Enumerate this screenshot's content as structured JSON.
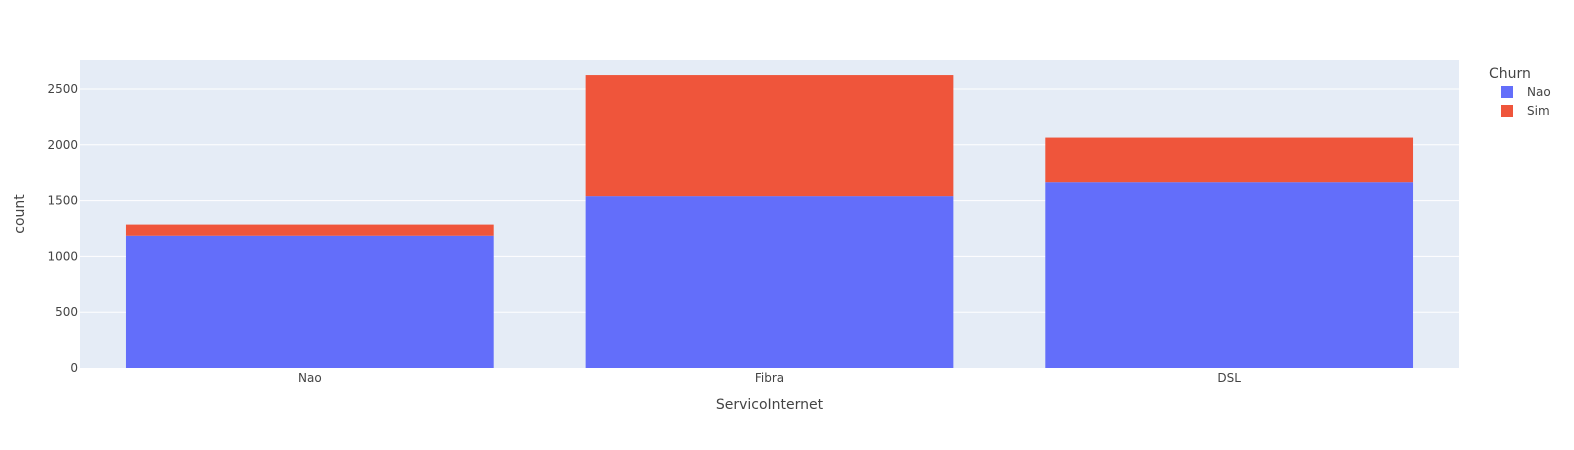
{
  "chart_data": {
    "type": "bar",
    "barmode": "stack",
    "categories": [
      "Nao",
      "Fibra",
      "DSL"
    ],
    "series": [
      {
        "name": "Nao",
        "values": [
          1185,
          1540,
          1665
        ],
        "color": "#636efa"
      },
      {
        "name": "Sim",
        "values": [
          100,
          1085,
          400
        ],
        "color": "#ef553b"
      }
    ],
    "xlabel": "ServicoInternet",
    "ylabel": "count",
    "ylim": [
      0,
      2760
    ],
    "yticks": [
      0,
      500,
      1000,
      1500,
      2000,
      2500
    ],
    "legend": {
      "title": "Churn",
      "position": "top-right"
    },
    "grid": true,
    "background": "#e5ecf6",
    "gridcolor": "#ffffff"
  }
}
